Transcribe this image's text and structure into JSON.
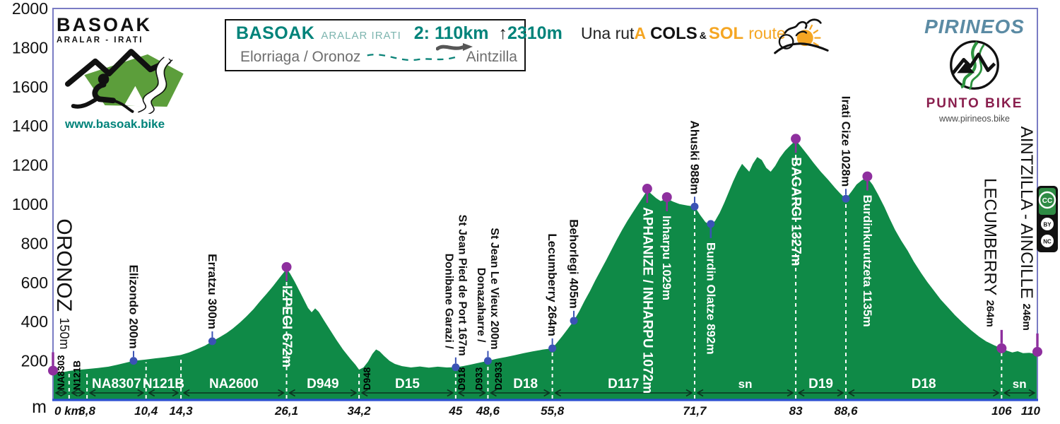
{
  "colors": {
    "profile_green": "#0f8a47",
    "frame": "#7a7cc4",
    "axis_blue": "#2b4fd0",
    "summit_dot_purple": "#8e2f9e",
    "town_dot_blue": "#3b53b5",
    "teal": "#00837a",
    "teal_light": "#7db5af",
    "orange": "#f5a623",
    "maroon": "#8a1f4e",
    "steel_blue": "#5b8ba4",
    "gray_text": "#6e6e6e",
    "logo_green": "#5c9e3b"
  },
  "basoak_logo": {
    "title": "BASOAK",
    "subtitle": "ARALAR - IRATI",
    "url": "www.basoak.bike"
  },
  "stage_box": {
    "brand": "BASOAK",
    "brand_sub": "ARALAR IRATI",
    "stage_label": "2:",
    "distance": "110km",
    "up_arrow": "↑",
    "elevation_gain": "2310m",
    "route_start": "Elorriaga / Oronoz",
    "route_end": "Aintzilla"
  },
  "tagline": {
    "part1": "Una rut",
    "part2": "A",
    "part3": "COLS",
    "part4": "&",
    "part5": "SOL",
    "part6": "route"
  },
  "pirineos_logo": {
    "title": "PIRINEOS",
    "subtitle": "PUNTO BIKE",
    "url": "www.pirineos.bike"
  },
  "license_badge": {
    "items": [
      "CC",
      "BY",
      "NC"
    ]
  },
  "chart_data": {
    "type": "area",
    "title": "Basoak Aralar-Irati stage 2 elevation profile (Elorriaga/Oronoz to Aintzilla)",
    "x_unit": "km",
    "y_unit": "m",
    "xlim": [
      0,
      110
    ],
    "ylim": [
      0,
      2000
    ],
    "grid": false,
    "y_ticks": [
      2000,
      1800,
      1600,
      1400,
      1200,
      1000,
      800,
      600,
      400,
      200
    ],
    "x_ticks": [
      {
        "km": 0,
        "label": "0 km"
      },
      {
        "km": 3.8,
        "label": "3,8"
      },
      {
        "km": 10.4,
        "label": "10,4"
      },
      {
        "km": 14.3,
        "label": "14,3"
      },
      {
        "km": 26.1,
        "label": "26,1"
      },
      {
        "km": 34.2,
        "label": "34,2"
      },
      {
        "km": 45,
        "label": "45"
      },
      {
        "km": 48.6,
        "label": "48,6"
      },
      {
        "km": 55.8,
        "label": "55,8"
      },
      {
        "km": 71.7,
        "label": "71,7"
      },
      {
        "km": 83,
        "label": "83"
      },
      {
        "km": 88.6,
        "label": "88,6"
      },
      {
        "km": 106,
        "label": "106"
      },
      {
        "km": 110,
        "label": "110"
      }
    ],
    "profile": [
      [
        0,
        150
      ],
      [
        0.6,
        140
      ],
      [
        1.2,
        143
      ],
      [
        1.8,
        148
      ],
      [
        2.6,
        153
      ],
      [
        3.8,
        158
      ],
      [
        5,
        163
      ],
      [
        6.2,
        170
      ],
      [
        7.2,
        180
      ],
      [
        8.1,
        190
      ],
      [
        9,
        200
      ],
      [
        10.4,
        207
      ],
      [
        11.5,
        213
      ],
      [
        12.5,
        218
      ],
      [
        13.4,
        224
      ],
      [
        14.3,
        230
      ],
      [
        15.2,
        243
      ],
      [
        16.1,
        260
      ],
      [
        17,
        278
      ],
      [
        17.8,
        300
      ],
      [
        18.6,
        320
      ],
      [
        19.4,
        342
      ],
      [
        20.1,
        365
      ],
      [
        20.9,
        396
      ],
      [
        21.6,
        426
      ],
      [
        22.4,
        464
      ],
      [
        23.1,
        502
      ],
      [
        23.9,
        544
      ],
      [
        24.6,
        582
      ],
      [
        25.3,
        624
      ],
      [
        25.8,
        652
      ],
      [
        26.1,
        672
      ],
      [
        26.5,
        645
      ],
      [
        27,
        605
      ],
      [
        27.5,
        560
      ],
      [
        28,
        515
      ],
      [
        28.5,
        470
      ],
      [
        28.9,
        448
      ],
      [
        29.3,
        468
      ],
      [
        29.7,
        450
      ],
      [
        30.3,
        405
      ],
      [
        31,
        355
      ],
      [
        31.7,
        305
      ],
      [
        32.4,
        258
      ],
      [
        33.2,
        212
      ],
      [
        33.8,
        180
      ],
      [
        34.2,
        155
      ],
      [
        34.7,
        166
      ],
      [
        35.2,
        196
      ],
      [
        35.7,
        236
      ],
      [
        36.1,
        258
      ],
      [
        36.5,
        248
      ],
      [
        37,
        225
      ],
      [
        37.6,
        200
      ],
      [
        38.2,
        184
      ],
      [
        39,
        173
      ],
      [
        40,
        166
      ],
      [
        41,
        171
      ],
      [
        42,
        165
      ],
      [
        43,
        170
      ],
      [
        44,
        166
      ],
      [
        45,
        167
      ],
      [
        45.8,
        173
      ],
      [
        46.6,
        180
      ],
      [
        47.5,
        189
      ],
      [
        48.6,
        200
      ],
      [
        49.6,
        211
      ],
      [
        50.6,
        219
      ],
      [
        51.6,
        229
      ],
      [
        52.6,
        239
      ],
      [
        53.6,
        248
      ],
      [
        54.7,
        257
      ],
      [
        55.8,
        264
      ],
      [
        56.3,
        292
      ],
      [
        56.9,
        326
      ],
      [
        57.5,
        362
      ],
      [
        58.2,
        405
      ],
      [
        58.8,
        452
      ],
      [
        59.4,
        506
      ],
      [
        60,
        556
      ],
      [
        60.6,
        611
      ],
      [
        61.2,
        662
      ],
      [
        61.8,
        713
      ],
      [
        62.4,
        766
      ],
      [
        63,
        819
      ],
      [
        63.6,
        869
      ],
      [
        64.2,
        916
      ],
      [
        64.8,
        959
      ],
      [
        65.4,
        1001
      ],
      [
        66,
        1042
      ],
      [
        66.4,
        1072
      ],
      [
        66.9,
        1051
      ],
      [
        67.4,
        1031
      ],
      [
        67.9,
        1016
      ],
      [
        68.6,
        1029
      ],
      [
        69.3,
        1013
      ],
      [
        70,
        1001
      ],
      [
        70.9,
        993
      ],
      [
        71.7,
        988
      ],
      [
        72.3,
        946
      ],
      [
        72.9,
        909
      ],
      [
        73.5,
        892
      ],
      [
        74,
        916
      ],
      [
        74.5,
        956
      ],
      [
        75,
        1006
      ],
      [
        75.5,
        1061
      ],
      [
        76,
        1116
      ],
      [
        76.5,
        1166
      ],
      [
        77,
        1206
      ],
      [
        77.4,
        1186
      ],
      [
        77.8,
        1166
      ],
      [
        78.2,
        1206
      ],
      [
        78.7,
        1241
      ],
      [
        79.2,
        1226
      ],
      [
        79.7,
        1186
      ],
      [
        80.2,
        1166
      ],
      [
        80.7,
        1196
      ],
      [
        81.2,
        1236
      ],
      [
        81.8,
        1273
      ],
      [
        82.4,
        1301
      ],
      [
        83,
        1327
      ],
      [
        83.6,
        1293
      ],
      [
        84.3,
        1253
      ],
      [
        85,
        1211
      ],
      [
        85.8,
        1166
      ],
      [
        86.6,
        1126
      ],
      [
        87.4,
        1083
      ],
      [
        88,
        1053
      ],
      [
        88.6,
        1028
      ],
      [
        89.2,
        1063
      ],
      [
        89.8,
        1101
      ],
      [
        90.4,
        1123
      ],
      [
        91,
        1135
      ],
      [
        91.6,
        1099
      ],
      [
        92.2,
        1049
      ],
      [
        92.9,
        986
      ],
      [
        93.5,
        926
      ],
      [
        94.1,
        869
      ],
      [
        94.8,
        813
      ],
      [
        95.5,
        763
      ],
      [
        96.2,
        706
      ],
      [
        97,
        649
      ],
      [
        97.7,
        603
      ],
      [
        98.4,
        561
      ],
      [
        99.2,
        513
      ],
      [
        100,
        473
      ],
      [
        100.8,
        433
      ],
      [
        101.7,
        393
      ],
      [
        102.6,
        356
      ],
      [
        103.5,
        323
      ],
      [
        104.3,
        299
      ],
      [
        105.2,
        279
      ],
      [
        106,
        264
      ],
      [
        106.6,
        252
      ],
      [
        107.2,
        243
      ],
      [
        107.8,
        249
      ],
      [
        108.4,
        239
      ],
      [
        109.1,
        241
      ],
      [
        109.6,
        237
      ],
      [
        110,
        246
      ]
    ],
    "waypoints": [
      {
        "label": "ORONOZ",
        "alt": "150m",
        "km": 0,
        "elev": 150,
        "dot": "purple",
        "style": "terminus",
        "dx": 16,
        "size": 30,
        "alt_size": 18,
        "alt_bold": false
      },
      {
        "label": "Elizondo",
        "alt": "200m",
        "km": 9,
        "elev": 200,
        "dot": "blue",
        "style": "town"
      },
      {
        "label": "Erratzu",
        "alt": "300m",
        "km": 17.8,
        "elev": 300,
        "dot": "blue",
        "style": "town"
      },
      {
        "label": "IZPEGI",
        "alt": "672m",
        "km": 26.1,
        "elev": 672,
        "dot": "purple",
        "style": "summit",
        "size": 19
      },
      {
        "lines": [
          "Donibane Garazi /",
          "St Jean Pied de Port 167m"
        ],
        "km": 45,
        "elev": 167,
        "dot": "blue",
        "style": "town2"
      },
      {
        "lines": [
          "Donazaharre /",
          "St Jean Le Vieux 200m"
        ],
        "km": 48.6,
        "elev": 200,
        "dot": "blue",
        "style": "town2"
      },
      {
        "label": "Lecumberry",
        "alt": "264m",
        "km": 55.8,
        "elev": 264,
        "dot": "blue",
        "style": "town"
      },
      {
        "label": "Behorlegi",
        "alt": "405m",
        "km": 58.2,
        "elev": 405,
        "dot": "blue",
        "style": "town"
      },
      {
        "label": "APHANIZE / INHARPU",
        "alt": "1072m",
        "km": 66.4,
        "elev": 1072,
        "dot": "purple",
        "style": "summit",
        "size": 19
      },
      {
        "label": "Inharpu",
        "alt": "1029m",
        "km": 68.6,
        "elev": 1029,
        "dot": "purple",
        "style": "summit",
        "size": 17
      },
      {
        "label": "Ahuski",
        "alt": "988m",
        "km": 71.7,
        "elev": 988,
        "dot": "blue",
        "style": "town"
      },
      {
        "label": "Burdin Olatze",
        "alt": "892m",
        "km": 73.5,
        "elev": 892,
        "dot": "blue",
        "style": "summit",
        "size": 17
      },
      {
        "label": "BAGARGI",
        "alt": "1327m",
        "km": 83,
        "elev": 1327,
        "dot": "purple",
        "style": "summit",
        "size": 19
      },
      {
        "label": "Irati Cize",
        "alt": "1028m",
        "km": 88.6,
        "elev": 1028,
        "dot": "blue",
        "style": "town"
      },
      {
        "label": "Burdinkurutzeta",
        "alt": "1135m",
        "km": 91,
        "elev": 1135,
        "dot": "purple",
        "style": "summit",
        "size": 17
      },
      {
        "label": "LECUMBERRY",
        "alt": "264m",
        "km": 106,
        "elev": 264,
        "dot": "purple",
        "style": "terminus",
        "dx": -16,
        "size": 24,
        "alt_size": 15,
        "alt_bold": true
      },
      {
        "label": "AINTZILLA - AINCILLE",
        "alt": "246m",
        "km": 110,
        "elev": 246,
        "dot": "purple",
        "style": "terminus",
        "dx": -15,
        "size": 24,
        "alt_size": 15,
        "alt_bold": true
      }
    ],
    "road_segments": [
      {
        "label": "NA8307",
        "from": 3.8,
        "to": 10.4
      },
      {
        "label": "N121B",
        "from": 10.4,
        "to": 14.3
      },
      {
        "label": "NA2600",
        "from": 14.3,
        "to": 26.1
      },
      {
        "label": "D949",
        "from": 26.1,
        "to": 34.2
      },
      {
        "label": "D15",
        "from": 34.2,
        "to": 45
      },
      {
        "label": "D18",
        "from": 48.6,
        "to": 55.8,
        "label_km": 52.8
      },
      {
        "label": "D117",
        "from": 55.8,
        "to": 71.7
      },
      {
        "label": "sn",
        "from": 71.7,
        "to": 83
      },
      {
        "label": "D19",
        "from": 83,
        "to": 88.6
      },
      {
        "label": "D18",
        "from": 88.6,
        "to": 106
      },
      {
        "label": "sn",
        "from": 106,
        "to": 110
      }
    ],
    "road_markers_vertical": [
      {
        "label": "NA8303",
        "km": 0.9
      },
      {
        "label": "N121B",
        "km": 2.7
      },
      {
        "label": "D948",
        "km": 35.1
      },
      {
        "label": "D918",
        "km": 45.7
      },
      {
        "label": "D933",
        "km": 47.6
      },
      {
        "label": "D2933",
        "km": 49.8
      }
    ],
    "arrow_bounds": [
      0,
      1.8,
      3.8,
      10.4,
      14.3,
      26.1,
      34.2,
      45,
      48.6,
      55.8,
      71.7,
      83,
      88.6,
      106,
      110
    ],
    "boundaries": [
      [
        1.8,
        150
      ],
      [
        3.8,
        158
      ],
      [
        10.4,
        207
      ],
      [
        14.3,
        230
      ],
      [
        26.1,
        648
      ],
      [
        34.2,
        158
      ],
      [
        45,
        168
      ],
      [
        48.6,
        201
      ],
      [
        55.8,
        264
      ],
      [
        71.7,
        985
      ],
      [
        83,
        1300
      ],
      [
        88.6,
        1028
      ],
      [
        106,
        264
      ]
    ]
  }
}
